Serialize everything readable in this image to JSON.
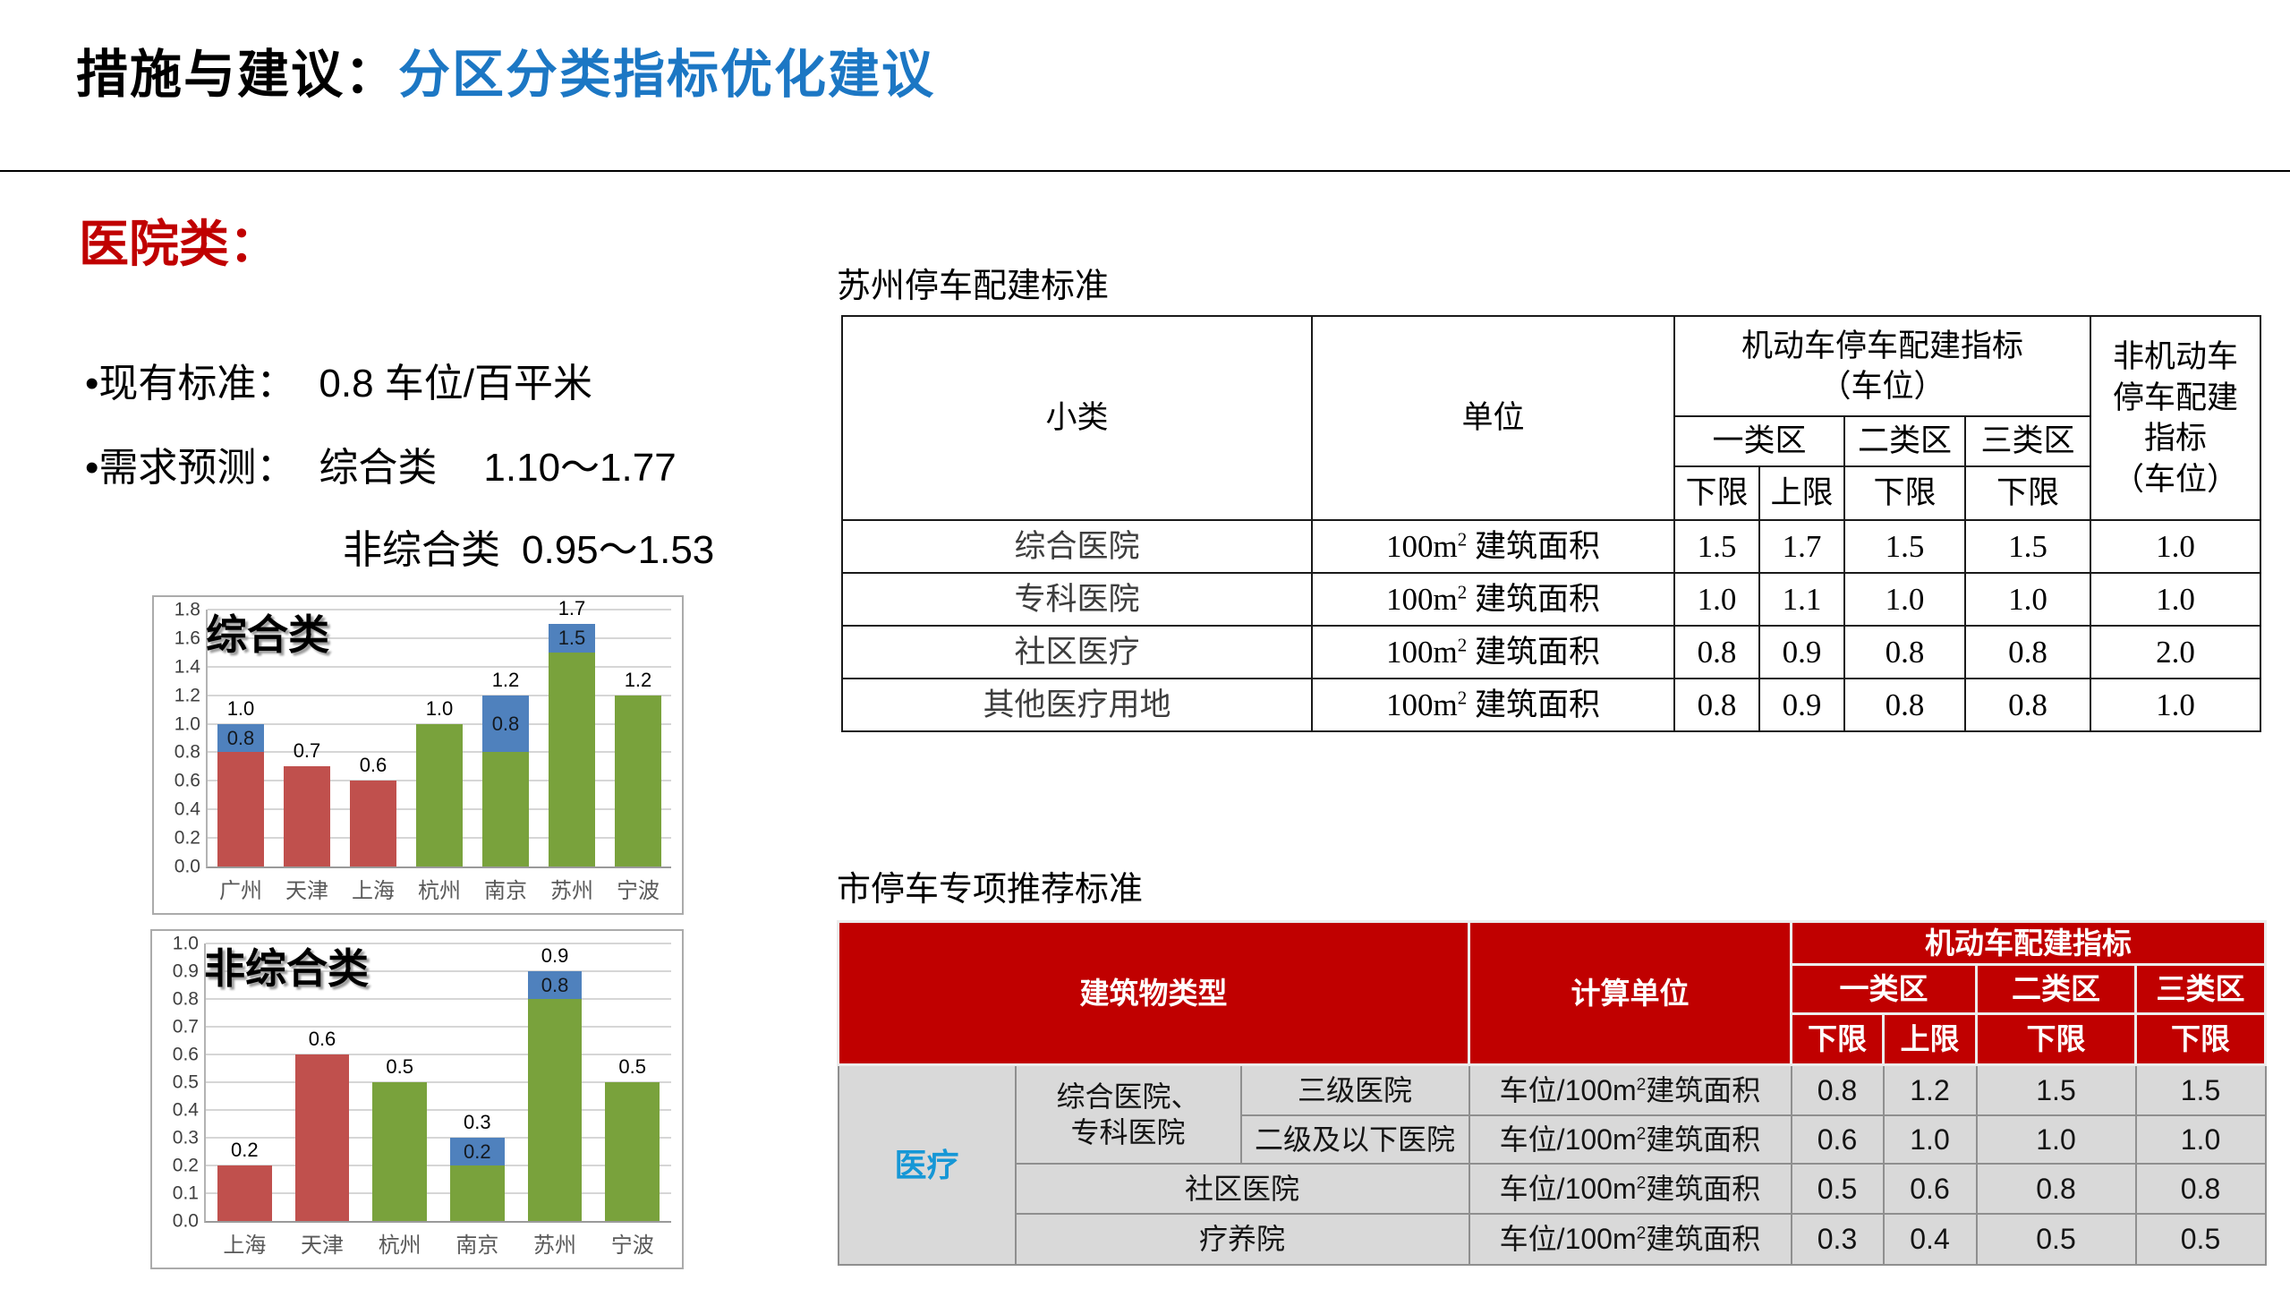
{
  "slide": {
    "title_black": "措施与建议：",
    "title_blue": "分区分类指标优化建议",
    "accent_blue": "#1C77C4",
    "accent_red": "#C00000"
  },
  "left": {
    "heading": "医院类：",
    "bullet_char": "•",
    "bullets": {
      "b1_label": "现有标准：",
      "b1_value": "0.8 车位/百平米",
      "b2_label": "需求预测：",
      "b2_item": "综合类",
      "b2_range": "1.10～1.77",
      "b3_item": "非综合类",
      "b3_range": "0.95～1.53"
    }
  },
  "chart_data": [
    {
      "type": "bar",
      "stacked": true,
      "title": "综合类",
      "xlabel": "",
      "ylabel": "",
      "grid": true,
      "legend": false,
      "ylim": [
        0,
        1.8
      ],
      "ytick_step": 0.2,
      "categories": [
        "广州",
        "天津",
        "上海",
        "杭州",
        "南京",
        "苏州",
        "宁波"
      ],
      "colors": {
        "red": "#C0504D",
        "green": "#79A23C",
        "blue": "#4F81BD"
      },
      "bars": [
        {
          "category": "广州",
          "segments": [
            {
              "color": "#C0504D",
              "value": 0.8
            },
            {
              "color": "#4F81BD",
              "value": 0.2,
              "label": "0.8"
            }
          ],
          "total": 1.0,
          "total_label": "1.0"
        },
        {
          "category": "天津",
          "segments": [
            {
              "color": "#C0504D",
              "value": 0.7
            }
          ],
          "total": 0.7,
          "total_label": "0.7"
        },
        {
          "category": "上海",
          "segments": [
            {
              "color": "#C0504D",
              "value": 0.6
            }
          ],
          "total": 0.6,
          "total_label": "0.6"
        },
        {
          "category": "杭州",
          "segments": [
            {
              "color": "#79A23C",
              "value": 1.0
            }
          ],
          "total": 1.0,
          "total_label": "1.0"
        },
        {
          "category": "南京",
          "segments": [
            {
              "color": "#79A23C",
              "value": 0.8
            },
            {
              "color": "#4F81BD",
              "value": 0.4,
              "label": "0.8"
            }
          ],
          "total": 1.2,
          "total_label": "1.2"
        },
        {
          "category": "苏州",
          "segments": [
            {
              "color": "#79A23C",
              "value": 1.5
            },
            {
              "color": "#4F81BD",
              "value": 0.2,
              "label": "1.5"
            }
          ],
          "total": 1.7,
          "total_label": "1.7"
        },
        {
          "category": "宁波",
          "segments": [
            {
              "color": "#79A23C",
              "value": 1.2
            }
          ],
          "total": 1.2,
          "total_label": "1.2"
        }
      ]
    },
    {
      "type": "bar",
      "stacked": true,
      "title": "非综合类",
      "xlabel": "",
      "ylabel": "",
      "grid": true,
      "legend": false,
      "ylim": [
        0,
        1.0
      ],
      "ytick_step": 0.1,
      "categories": [
        "上海",
        "天津",
        "杭州",
        "南京",
        "苏州",
        "宁波"
      ],
      "colors": {
        "red": "#C0504D",
        "green": "#79A23C",
        "blue": "#4F81BD"
      },
      "bars": [
        {
          "category": "上海",
          "segments": [
            {
              "color": "#C0504D",
              "value": 0.2
            }
          ],
          "total": 0.2,
          "total_label": "0.2"
        },
        {
          "category": "天津",
          "segments": [
            {
              "color": "#C0504D",
              "value": 0.6
            }
          ],
          "total": 0.6,
          "total_label": "0.6"
        },
        {
          "category": "杭州",
          "segments": [
            {
              "color": "#79A23C",
              "value": 0.5
            }
          ],
          "total": 0.5,
          "total_label": "0.5"
        },
        {
          "category": "南京",
          "segments": [
            {
              "color": "#79A23C",
              "value": 0.2
            },
            {
              "color": "#4F81BD",
              "value": 0.1,
              "label": "0.2"
            }
          ],
          "total": 0.3,
          "total_label": "0.3"
        },
        {
          "category": "苏州",
          "segments": [
            {
              "color": "#79A23C",
              "value": 0.8
            },
            {
              "color": "#4F81BD",
              "value": 0.1,
              "label": "0.8"
            }
          ],
          "total": 0.9,
          "total_label": "0.9"
        },
        {
          "category": "宁波",
          "segments": [
            {
              "color": "#79A23C",
              "value": 0.5
            }
          ],
          "total": 0.5,
          "total_label": "0.5"
        }
      ]
    }
  ],
  "suzhou_table": {
    "title": "苏州停车配建标准",
    "header": {
      "col_category": "小类",
      "col_unit": "单位",
      "motor_line1": "机动车停车配建指标",
      "motor_line2": "（车位）",
      "non_motor_lines": [
        "非机动车",
        "停车配建",
        "指标",
        "（车位）"
      ],
      "zone1": "一类区",
      "zone2": "二类区",
      "zone3": "三类区",
      "lower": "下限",
      "upper": "上限"
    },
    "unit": {
      "pre": "100m",
      "sup": "2",
      "post": " 建筑面积"
    },
    "rows": [
      {
        "category": "综合医院",
        "z1_lower": "1.5",
        "z1_upper": "1.7",
        "z2_lower": "1.5",
        "z3_lower": "1.5",
        "non_motor": "1.0"
      },
      {
        "category": "专科医院",
        "z1_lower": "1.0",
        "z1_upper": "1.1",
        "z2_lower": "1.0",
        "z3_lower": "1.0",
        "non_motor": "1.0"
      },
      {
        "category": "社区医疗",
        "z1_lower": "0.8",
        "z1_upper": "0.9",
        "z2_lower": "0.8",
        "z3_lower": "0.8",
        "non_motor": "2.0"
      },
      {
        "category": "其他医疗用地",
        "z1_lower": "0.8",
        "z1_upper": "0.9",
        "z2_lower": "0.8",
        "z3_lower": "0.8",
        "non_motor": "1.0"
      }
    ]
  },
  "city_table": {
    "title": "市停车专项推荐标准",
    "header": {
      "building_type": "建筑物类型",
      "calc_unit": "计算单位",
      "motor_group": "机动车配建指标",
      "zone1": "一类区",
      "zone2": "二类区",
      "zone3": "三类区",
      "lower": "下限",
      "upper": "上限"
    },
    "category": "医疗",
    "group_lines": [
      "综合医院、",
      "专科医院"
    ],
    "unit": {
      "pre": "车位/100m",
      "sup": "2",
      "post": "建筑面积"
    },
    "rows": [
      {
        "sub": "三级医院",
        "z1_lower": "0.8",
        "z1_upper": "1.2",
        "z2_lower": "1.5",
        "z3_lower": "1.5"
      },
      {
        "sub": "二级及以下医院",
        "z1_lower": "0.6",
        "z1_upper": "1.0",
        "z2_lower": "1.0",
        "z3_lower": "1.0"
      },
      {
        "sub": "社区医院",
        "z1_lower": "0.5",
        "z1_upper": "0.6",
        "z2_lower": "0.8",
        "z3_lower": "0.8"
      },
      {
        "sub": "疗养院",
        "z1_lower": "0.3",
        "z1_upper": "0.4",
        "z2_lower": "0.5",
        "z3_lower": "0.5"
      }
    ]
  }
}
